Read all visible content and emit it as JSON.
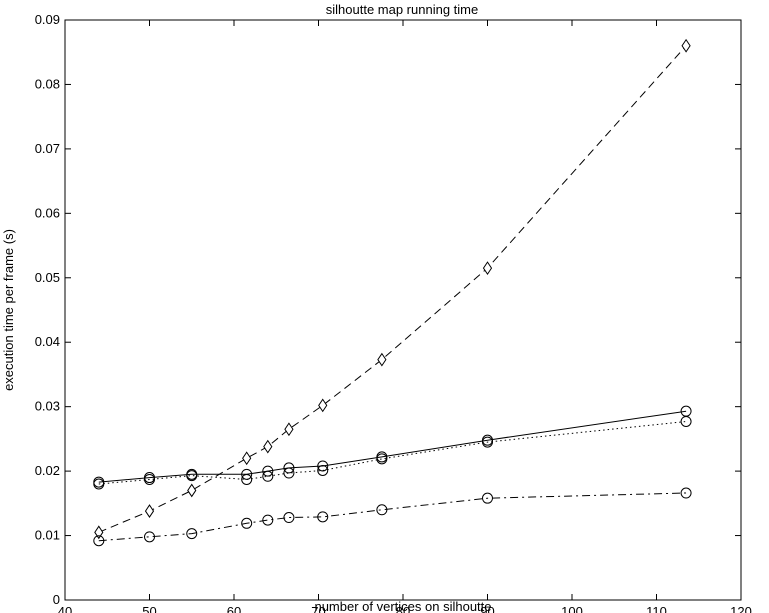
{
  "chart_data": {
    "type": "line",
    "title": "silhoutte map running time",
    "xlabel": "number of vertices on silhoutte",
    "ylabel": "execution time per frame (s)",
    "xlim": [
      40,
      120
    ],
    "ylim": [
      0,
      0.09
    ],
    "xticks": [
      "40",
      "50",
      "60",
      "70",
      "80",
      "90",
      "100",
      "110",
      "120"
    ],
    "yticks": [
      "0",
      "0.01",
      "0.02",
      "0.03",
      "0.04",
      "0.05",
      "0.06",
      "0.07",
      "0.08",
      "0.09"
    ],
    "grid": false,
    "legend": "none",
    "series": [
      {
        "style": "dashed",
        "marker": "diamond",
        "color": "#000000",
        "x": [
          44,
          50,
          55,
          61.5,
          64,
          66.5,
          70.5,
          77.5,
          90,
          113.5
        ],
        "values": [
          0.0105,
          0.0138,
          0.017,
          0.022,
          0.0238,
          0.0265,
          0.0302,
          0.0373,
          0.0515,
          0.086
        ]
      },
      {
        "style": "solid",
        "marker": "circle",
        "color": "#000000",
        "x": [
          44,
          50,
          55,
          61.5,
          64,
          66.5,
          70.5,
          77.5,
          90,
          113.5
        ],
        "values": [
          0.0183,
          0.019,
          0.0195,
          0.0195,
          0.02,
          0.0205,
          0.0208,
          0.0222,
          0.0248,
          0.0293
        ]
      },
      {
        "style": "dotted",
        "marker": "circle",
        "color": "#000000",
        "x": [
          44,
          50,
          55,
          61.5,
          64,
          66.5,
          70.5,
          77.5,
          90,
          113.5
        ],
        "values": [
          0.018,
          0.0187,
          0.0193,
          0.0187,
          0.0192,
          0.0197,
          0.0201,
          0.0219,
          0.0245,
          0.0277
        ]
      },
      {
        "style": "dash-dot",
        "marker": "circle",
        "color": "#000000",
        "x": [
          44,
          50,
          55,
          61.5,
          64,
          66.5,
          70.5,
          77.5,
          90,
          113.5
        ],
        "values": [
          0.0092,
          0.0098,
          0.0103,
          0.0119,
          0.0124,
          0.0128,
          0.0129,
          0.014,
          0.0158,
          0.0166
        ]
      }
    ]
  }
}
